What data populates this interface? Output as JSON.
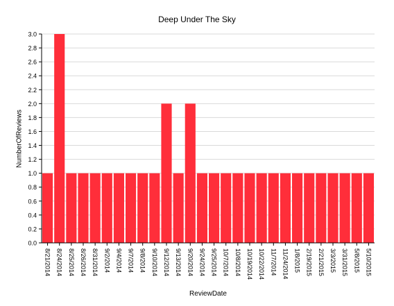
{
  "chart_data": {
    "type": "bar",
    "title": "Deep Under The Sky",
    "xlabel": "ReviewDate",
    "ylabel": "NumberOfReviews",
    "categories": [
      "8/21/2014",
      "8/24/2014",
      "8/25/2014",
      "8/26/2014",
      "8/31/2014",
      "9/2/2014",
      "9/4/2014",
      "9/7/2014",
      "9/8/2014",
      "9/10/2014",
      "9/12/2014",
      "9/13/2014",
      "9/20/2014",
      "9/24/2014",
      "9/25/2014",
      "10/7/2014",
      "10/8/2014",
      "10/19/2014",
      "10/22/2014",
      "11/7/2014",
      "11/24/2014",
      "1/8/2015",
      "2/19/2015",
      "2/21/2015",
      "3/3/2015",
      "3/31/2015",
      "5/8/2015",
      "5/10/2015"
    ],
    "values": [
      1,
      3,
      1,
      1,
      1,
      1,
      1,
      1,
      1,
      1,
      2,
      1,
      2,
      1,
      1,
      1,
      1,
      1,
      1,
      1,
      1,
      1,
      1,
      1,
      1,
      1,
      1,
      1
    ],
    "ylim": [
      0,
      3
    ],
    "yticks": [
      "0.0",
      "0.2",
      "0.4",
      "0.6",
      "0.8",
      "1.0",
      "1.2",
      "1.4",
      "1.6",
      "1.8",
      "2.0",
      "2.2",
      "2.4",
      "2.6",
      "2.8",
      "3.0"
    ],
    "grid": true,
    "bar_color": "#ff2e3a",
    "grid_color": "#d9d9d9"
  }
}
